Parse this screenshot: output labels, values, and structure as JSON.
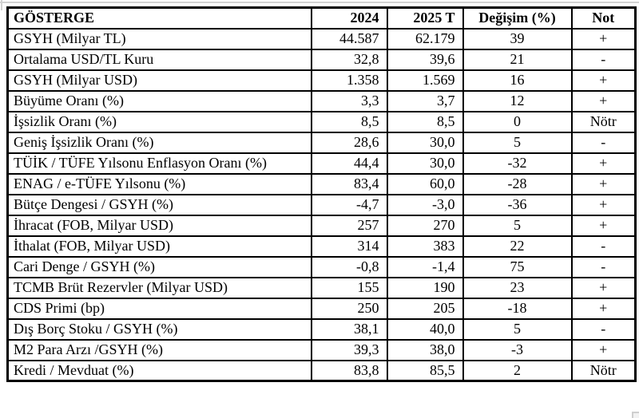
{
  "table": {
    "columns": [
      "GÖSTERGE",
      "2024",
      "2025 T",
      "Değişim (%)",
      "Not"
    ],
    "rows": [
      [
        "GSYH (Milyar TL)",
        "44.587",
        "62.179",
        "39",
        "+"
      ],
      [
        "Ortalama USD/TL Kuru",
        "32,8",
        "39,6",
        "21",
        "-"
      ],
      [
        "GSYH (Milyar USD)",
        "1.358",
        "1.569",
        "16",
        "+"
      ],
      [
        "Büyüme Oranı (%)",
        "3,3",
        "3,7",
        "12",
        "+"
      ],
      [
        "İşsizlik Oranı (%)",
        "8,5",
        "8,5",
        "0",
        "Nötr"
      ],
      [
        "Geniş İşsizlik Oranı (%)",
        "28,6",
        "30,0",
        "5",
        "-"
      ],
      [
        "TÜİK / TÜFE Yılsonu Enflasyon Oranı (%)",
        "44,4",
        "30,0",
        "-32",
        "+"
      ],
      [
        "ENAG / e-TÜFE Yılsonu (%)",
        "83,4",
        "60,0",
        "-28",
        "+"
      ],
      [
        "Bütçe Dengesi / GSYH (%)",
        "-4,7",
        "-3,0",
        "-36",
        "+"
      ],
      [
        "İhracat (FOB, Milyar USD)",
        "257",
        "270",
        "5",
        "+"
      ],
      [
        "İthalat (FOB, Milyar USD)",
        "314",
        "383",
        "22",
        "-"
      ],
      [
        "Cari Denge / GSYH (%)",
        "-0,8",
        "-1,4",
        "75",
        "-"
      ],
      [
        "TCMB Brüt Rezervler (Milyar USD)",
        "155",
        "190",
        "23",
        "+"
      ],
      [
        "CDS Primi (bp)",
        "250",
        "205",
        "-18",
        "+"
      ],
      [
        "Dış Borç Stoku / GSYH (%)",
        "38,1",
        "40,0",
        "5",
        "-"
      ],
      [
        "M2 Para Arzı /GSYH (%)",
        "39,3",
        "38,0",
        "-3",
        "+"
      ],
      [
        "Kredi / Mevduat (%)",
        "83,8",
        "85,5",
        "2",
        "Nötr"
      ]
    ]
  },
  "colors": {
    "border": "#000000",
    "text": "#000000",
    "background": "#ffffff",
    "edge_artifact": "#d2d2d2"
  }
}
